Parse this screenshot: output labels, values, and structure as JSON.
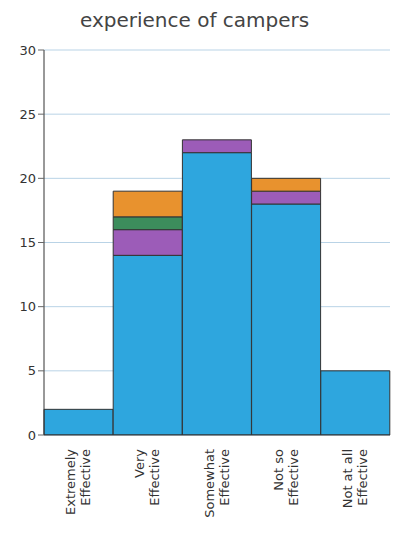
{
  "chart_data": {
    "type": "bar",
    "title": "experience of campers",
    "categories": [
      "Extremely Effective",
      "Very Effective",
      "Somewhat Effective",
      "Not so Effective",
      "Not at all Effective"
    ],
    "series": [
      {
        "color": "#2ea6de",
        "values": [
          2,
          14,
          22,
          18,
          5
        ]
      },
      {
        "color": "#9c5cb8",
        "values": [
          0,
          2,
          1,
          1,
          0
        ]
      },
      {
        "color": "#3c8d5c",
        "values": [
          0,
          1,
          0,
          0,
          0
        ]
      },
      {
        "color": "#e8922e",
        "values": [
          0,
          2,
          0,
          1,
          0
        ]
      }
    ],
    "stacked": true,
    "ylim": [
      0,
      30
    ],
    "yticks": [
      0,
      5,
      10,
      15,
      20,
      25,
      30
    ],
    "grid": true
  }
}
